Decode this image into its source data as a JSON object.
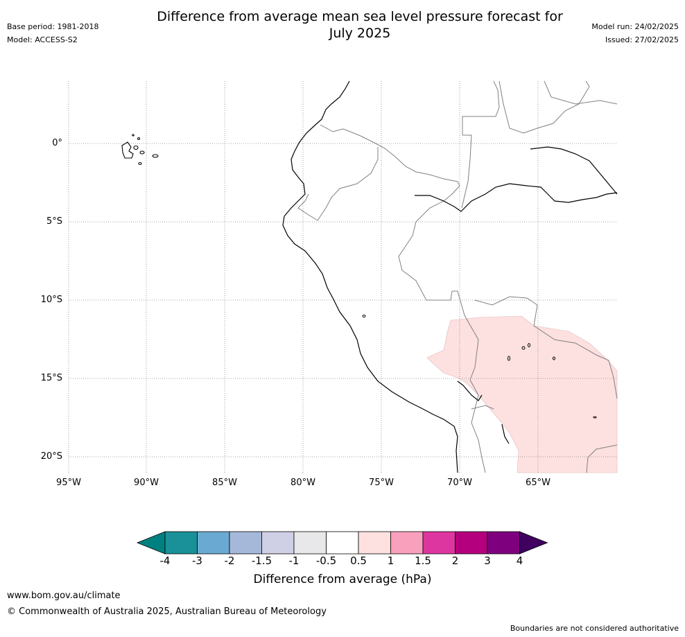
{
  "header": {
    "title_line1": "Difference from average mean sea level pressure forecast for",
    "title_line2": "July 2025",
    "base_period": "Base period: 1981-2018",
    "model": "Model: ACCESS-S2",
    "model_run": "Model run: 24/02/2025",
    "issued": "Issued: 27/02/2025"
  },
  "map": {
    "lat_labels": [
      "0°",
      "5°S",
      "10°S",
      "15°S",
      "20°S"
    ],
    "lon_labels": [
      "95°W",
      "90°W",
      "85°W",
      "80°W",
      "75°W",
      "70°W",
      "65°W"
    ],
    "anomaly_region": {
      "category": "0.5 to 1",
      "color": "#fde0e0"
    }
  },
  "colorbar": {
    "ticks": [
      "-4",
      "-3",
      "-2",
      "-1.5",
      "-1",
      "-0.5",
      "0.5",
      "1",
      "1.5",
      "2",
      "3",
      "4"
    ],
    "colors": [
      "#008080",
      "#1a9098",
      "#6aaad2",
      "#a6b8da",
      "#cfd0e6",
      "#e8e8ea",
      "#ffffff",
      "#fde0e0",
      "#f9a0bc",
      "#de36a0",
      "#b4007e",
      "#7e007e",
      "#3f0060"
    ],
    "label": "Difference from average (hPa)"
  },
  "footer": {
    "url": "www.bom.gov.au/climate",
    "copyright": "© Commonwealth of Australia 2025, Australian Bureau of Meteorology",
    "disclaimer": "Boundaries are not considered authoritative"
  }
}
